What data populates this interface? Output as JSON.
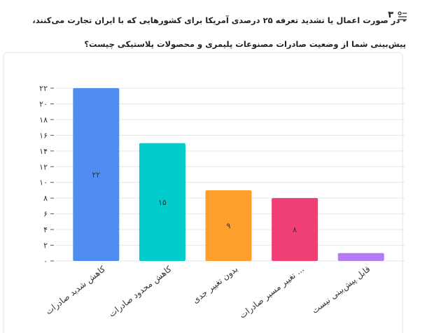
{
  "question": {
    "number": "۳",
    "text": "- در صورت اعمال یا تشدید تعرفه ۲۵ درصدی آمریکا برای کشورهایی که با ایران تجارت می‌کنند، پیش‌بینی شما از وضعیت صادرات مصنوعات پلیمری و محصولات پلاستیکی چیست؟"
  },
  "chart_data": {
    "type": "bar",
    "categories": [
      "کاهش شدید صادرات",
      "کاهش محدود صادرات",
      "بدون تغییر جدی",
      "تغییر مسیر صادرات ...",
      "قابل پیش‌بینی نیست"
    ],
    "values": [
      22,
      15,
      9,
      8,
      1
    ],
    "value_labels": [
      "۲۲",
      "۱۵",
      "۹",
      "۸",
      null
    ],
    "colors": [
      "#4f8ef0",
      "#00cccc",
      "#ff9f2e",
      "#ef3f75",
      "#b57bf0"
    ],
    "ylim": [
      0,
      22
    ],
    "yticks": [
      {
        "value": 0,
        "label": "۰"
      },
      {
        "value": 2,
        "label": "۲"
      },
      {
        "value": 4,
        "label": "۴"
      },
      {
        "value": 6,
        "label": "۶"
      },
      {
        "value": 8,
        "label": "۸"
      },
      {
        "value": 10,
        "label": "۱۰"
      },
      {
        "value": 12,
        "label": "۱۲"
      },
      {
        "value": 14,
        "label": "۱۴"
      },
      {
        "value": 16,
        "label": "۱۶"
      },
      {
        "value": 18,
        "label": "۱۸"
      },
      {
        "value": 20,
        "label": "۲۰"
      },
      {
        "value": 22,
        "label": "۲۲"
      }
    ],
    "grid": true
  }
}
